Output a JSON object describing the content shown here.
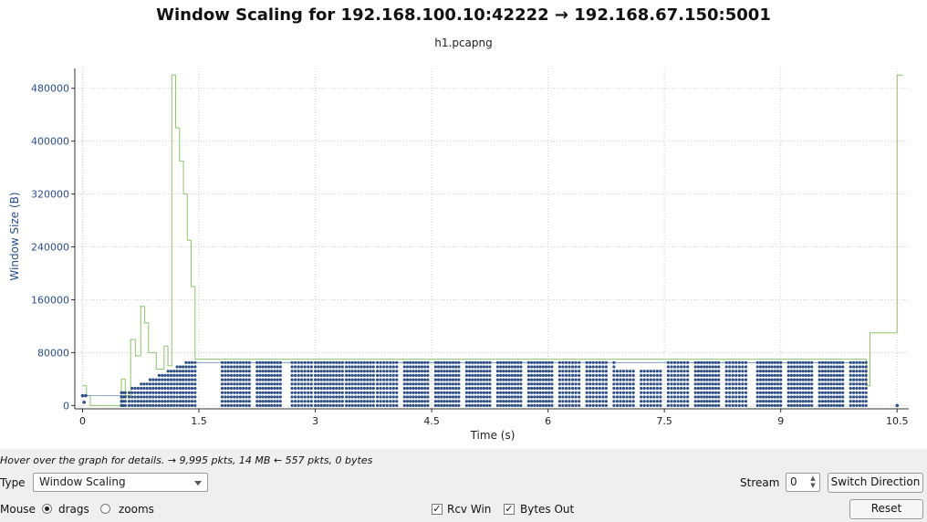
{
  "window": {
    "title": "Window Scaling for 192.168.100.10:42222 → 192.168.67.150:5001",
    "subtitle": "h1.pcapng"
  },
  "axes": {
    "ylabel": "Window Size (B)",
    "xlabel": "Time (s)",
    "yticks": [
      "0",
      "80000",
      "160000",
      "240000",
      "320000",
      "400000",
      "480000"
    ],
    "xticks": [
      "0",
      "1.5",
      "3",
      "4.5",
      "6",
      "7.5",
      "9",
      "10.5"
    ]
  },
  "chart_data": {
    "type": "scatter",
    "xlim": [
      -0.1,
      10.65
    ],
    "ylim": [
      -5000,
      510000
    ],
    "grid": true,
    "series": [
      {
        "name": "Bytes Out",
        "style": "points",
        "color": "#2e4f86"
      },
      {
        "name": "Rcv Win",
        "style": "step-line",
        "color": "#8cc66a"
      }
    ],
    "rcv_win_steps": [
      [
        0,
        30000
      ],
      [
        0.05,
        15000
      ],
      [
        0.1,
        0
      ],
      [
        0.5,
        40000
      ],
      [
        0.55,
        15000
      ],
      [
        0.62,
        100000
      ],
      [
        0.68,
        75000
      ],
      [
        0.75,
        150000
      ],
      [
        0.8,
        125000
      ],
      [
        0.85,
        80000
      ],
      [
        0.95,
        55000
      ],
      [
        1.05,
        90000
      ],
      [
        1.1,
        60000
      ],
      [
        1.15,
        500000
      ],
      [
        1.2,
        420000
      ],
      [
        1.25,
        370000
      ],
      [
        1.3,
        320000
      ],
      [
        1.35,
        250000
      ],
      [
        1.4,
        180000
      ],
      [
        1.45,
        70000
      ],
      [
        10.1,
        30000
      ],
      [
        10.15,
        110000
      ],
      [
        10.5,
        500000
      ]
    ],
    "packet_bursts": [
      [
        0.5,
        0.55
      ],
      [
        0.6,
        1.45
      ],
      [
        1.8,
        2.15
      ],
      [
        2.25,
        2.55
      ],
      [
        2.7,
        2.95
      ],
      [
        3.0,
        3.35
      ],
      [
        3.4,
        3.75
      ],
      [
        3.8,
        4.05
      ],
      [
        4.15,
        4.45
      ],
      [
        4.55,
        4.85
      ],
      [
        4.95,
        5.25
      ],
      [
        5.35,
        5.65
      ],
      [
        5.75,
        6.05
      ],
      [
        6.15,
        6.4
      ],
      [
        6.5,
        6.75
      ],
      [
        6.85,
        7.1
      ],
      [
        7.2,
        7.45
      ],
      [
        7.55,
        7.8
      ],
      [
        7.9,
        8.2
      ],
      [
        8.3,
        8.55
      ],
      [
        8.7,
        9.0
      ],
      [
        9.1,
        9.4
      ],
      [
        9.5,
        9.8
      ],
      [
        9.9,
        10.1
      ]
    ]
  },
  "status": {
    "hint": "Hover over the graph for details. → 9,995 pkts, 14 MB ← 557 pkts, 0 bytes"
  },
  "controls": {
    "type_label": "Type",
    "type_value": "Window Scaling",
    "stream_label": "Stream",
    "stream_value": "0",
    "switch_label": "Switch Direction",
    "mouse_label": "Mouse",
    "drags_label": "drags",
    "zooms_label": "zooms",
    "rcv_win_label": "Rcv Win",
    "bytes_out_label": "Bytes Out",
    "reset_label": "Reset",
    "check_glyph": "✓"
  }
}
